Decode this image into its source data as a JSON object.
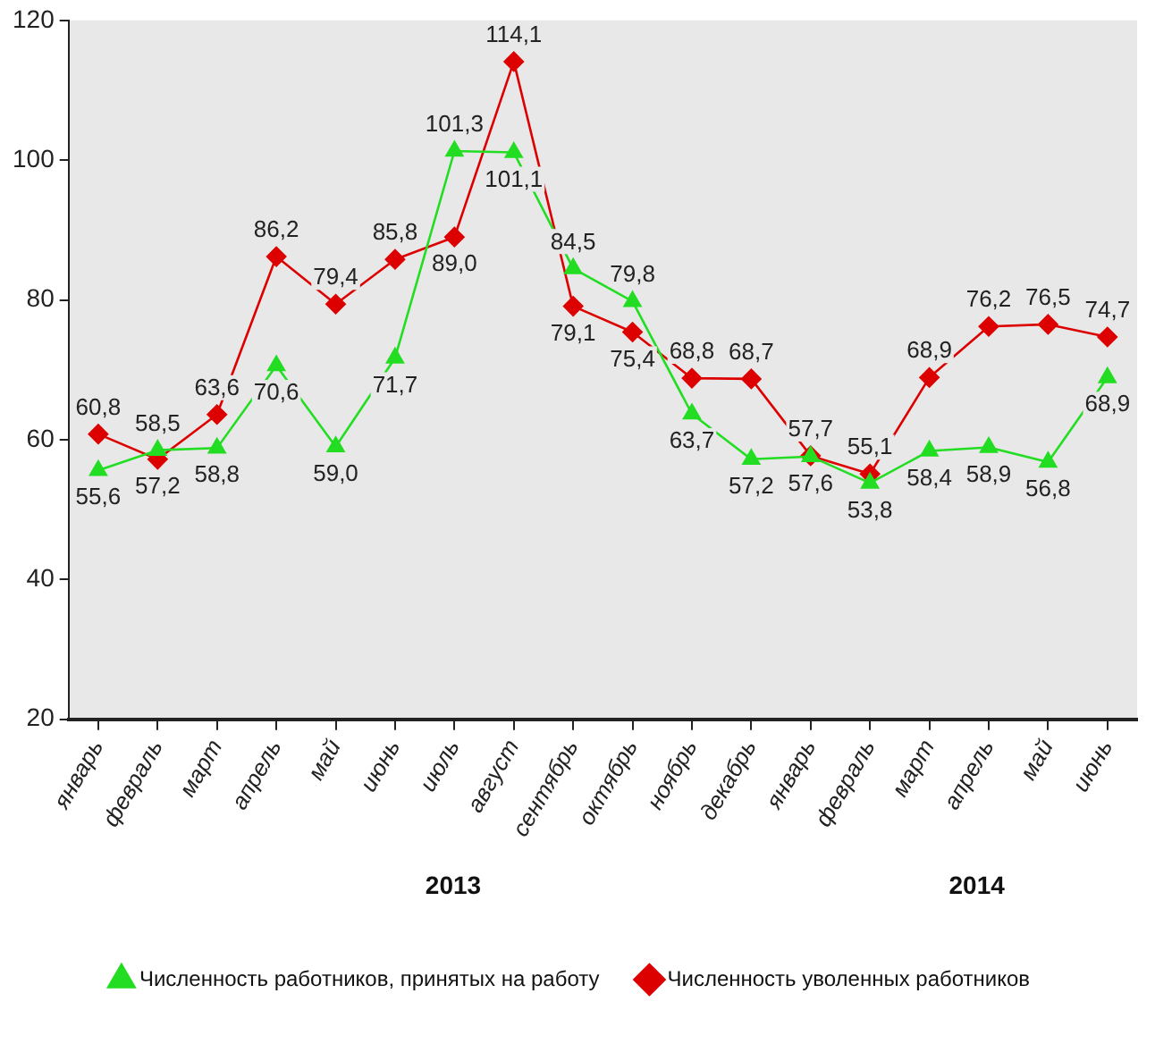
{
  "chart_data": {
    "type": "line",
    "categories": [
      "январь",
      "февраль",
      "март",
      "апрель",
      "май",
      "июнь",
      "июль",
      "август",
      "сентябрь",
      "октябрь",
      "ноябрь",
      "декабрь",
      "январь",
      "февраль",
      "март",
      "апрель",
      "май",
      "июнь"
    ],
    "series": [
      {
        "name": "Численность работников, принятых на работу",
        "color": "#22dd22",
        "marker": "triangle",
        "values": [
          55.6,
          58.5,
          58.8,
          70.6,
          59.0,
          71.7,
          101.3,
          101.1,
          84.5,
          79.8,
          63.7,
          57.2,
          57.6,
          53.8,
          58.4,
          58.9,
          56.8,
          68.9
        ],
        "value_labels": [
          "55,6",
          "58,5",
          "58,8",
          "70,6",
          "59,0",
          "71,7",
          "101,3",
          "101,1",
          "84,5",
          "79,8",
          "63,7",
          "57,2",
          "57,6",
          "53,8",
          "58,4",
          "58,9",
          "56,8",
          "68,9"
        ]
      },
      {
        "name": "Численность уволенных работников",
        "color": "#dd0000",
        "marker": "diamond",
        "values": [
          60.8,
          57.2,
          63.6,
          86.2,
          79.4,
          85.8,
          89.0,
          114.1,
          79.1,
          75.4,
          68.8,
          68.7,
          57.7,
          55.1,
          68.9,
          76.2,
          76.5,
          74.7
        ],
        "value_labels": [
          "60,8",
          "57,2",
          "63,6",
          "86,2",
          "79,4",
          "85,8",
          "89,0",
          "114,1",
          "79,1",
          "75,4",
          "68,8",
          "68,7",
          "57,7",
          "55,1",
          "68,9",
          "76,2",
          "76,5",
          "74,7"
        ]
      }
    ],
    "ylim": [
      20,
      120
    ],
    "yticks": [
      20,
      40,
      60,
      80,
      100,
      120
    ],
    "grid": false,
    "legend": "bottom",
    "annotations": [
      "2013",
      "2014"
    ]
  }
}
